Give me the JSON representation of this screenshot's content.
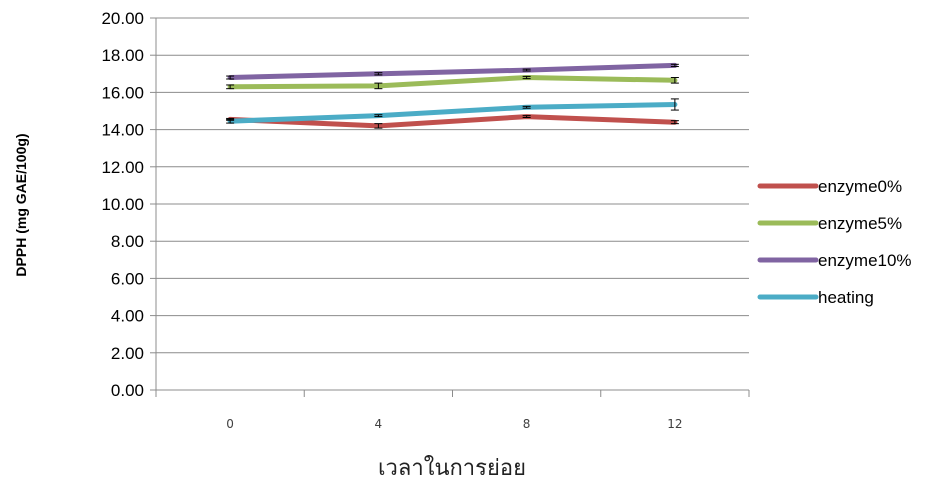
{
  "chart_data": {
    "type": "line",
    "title": "",
    "xlabel": "เวลาในการย่อย",
    "ylabel": "DPPH (mg GAE/100g)",
    "categories": [
      "0",
      "4",
      "8",
      "12"
    ],
    "ylim": [
      0,
      20
    ],
    "y_ticks": [
      "0.00",
      "2.00",
      "4.00",
      "6.00",
      "8.00",
      "10.00",
      "12.00",
      "14.00",
      "16.00",
      "18.00",
      "20.00"
    ],
    "grid": true,
    "legend_position": "right",
    "series": [
      {
        "name": "enzyme0%",
        "color": "#c0504d",
        "values": [
          14.55,
          14.2,
          14.7,
          14.4
        ],
        "errors": [
          0.05,
          0.12,
          0.05,
          0.08
        ]
      },
      {
        "name": "enzyme5%",
        "color": "#9bbb59",
        "values": [
          16.3,
          16.35,
          16.8,
          16.65
        ],
        "errors": [
          0.1,
          0.15,
          0.06,
          0.15
        ]
      },
      {
        "name": "enzyme10%",
        "color": "#8064a2",
        "values": [
          16.8,
          17.0,
          17.2,
          17.45
        ],
        "errors": [
          0.08,
          0.06,
          0.05,
          0.06
        ]
      },
      {
        "name": "heating",
        "color": "#4bacc6",
        "values": [
          14.45,
          14.75,
          15.2,
          15.35
        ],
        "errors": [
          0.1,
          0.05,
          0.05,
          0.3
        ]
      }
    ]
  }
}
